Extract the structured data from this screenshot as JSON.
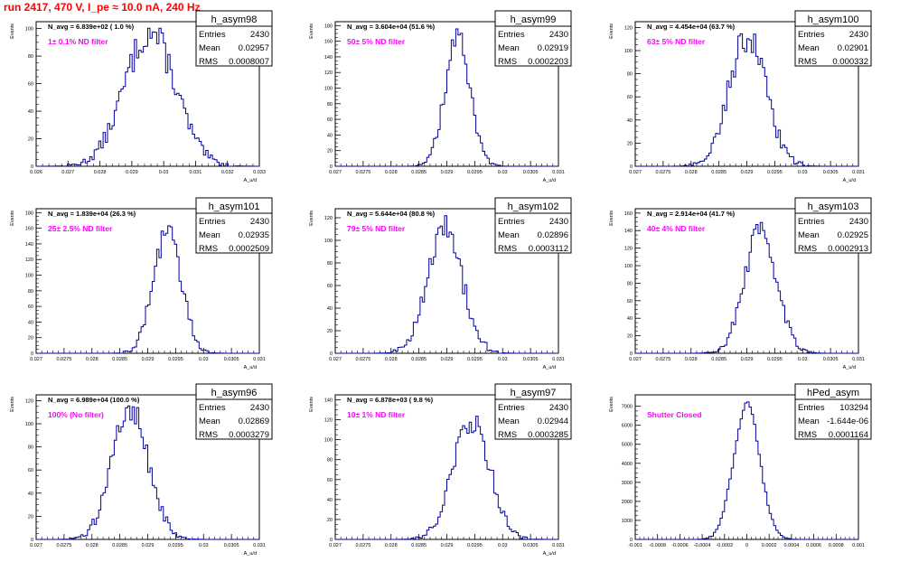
{
  "page": {
    "title": "run 2417,   470 V, I_pe ≈ 10.0 nA, 240 Hz"
  },
  "colors": {
    "histogram": "#000099",
    "frame": "#000000",
    "annotation": "#ff00ff",
    "title": "#ff0000"
  },
  "chart_data": [
    {
      "type": "histogram",
      "name": "h_asym98",
      "annotation": "N_avg = 6.839e+02 ( 1.0 %)",
      "filter_label": "1± 0.1% ND filter",
      "ylabel": "Events",
      "xlabel": "A_u/d",
      "stats": [
        {
          "label": "Entries",
          "value": "2430"
        },
        {
          "label": "Mean",
          "value": "0.02957"
        },
        {
          "label": "RMS",
          "value": "0.0008007"
        }
      ],
      "xlim": [
        0.026,
        0.033
      ],
      "xticks": [
        "0.026",
        "0.027",
        "0.028",
        "0.029",
        "0.03",
        "0.031",
        "0.032",
        "0.033"
      ],
      "ylim": [
        0,
        105
      ],
      "yticks": [
        0,
        20,
        40,
        60,
        80,
        100
      ],
      "mean": 0.02957,
      "sigma": 0.0008007,
      "peak": 97
    },
    {
      "type": "histogram",
      "name": "h_asym99",
      "annotation": "N_avg = 3.604e+04 (51.6 %)",
      "filter_label": "50± 5% ND filter",
      "ylabel": "Events",
      "xlabel": "A_u/d",
      "stats": [
        {
          "label": "Entries",
          "value": "2430"
        },
        {
          "label": "Mean",
          "value": "0.02919"
        },
        {
          "label": "RMS",
          "value": "0.0002203"
        }
      ],
      "xlim": [
        0.027,
        0.031
      ],
      "xticks": [
        "0.027",
        "0.0275",
        "0.028",
        "0.0285",
        "0.029",
        "0.0295",
        "0.03",
        "0.0305",
        "0.031"
      ],
      "ylim": [
        0,
        185
      ],
      "yticks": [
        0,
        20,
        40,
        60,
        80,
        100,
        120,
        140,
        160,
        180
      ],
      "mean": 0.02919,
      "sigma": 0.0002203,
      "peak": 165
    },
    {
      "type": "histogram",
      "name": "h_asym100",
      "annotation": "N_avg = 4.454e+04 (63.7 %)",
      "filter_label": "63± 5% ND filter",
      "ylabel": "Events",
      "xlabel": "A_u/d",
      "stats": [
        {
          "label": "Entries",
          "value": "2430"
        },
        {
          "label": "Mean",
          "value": "0.02901"
        },
        {
          "label": "RMS",
          "value": "0.000332"
        }
      ],
      "xlim": [
        0.027,
        0.031
      ],
      "xticks": [
        "0.027",
        "0.0275",
        "0.028",
        "0.0285",
        "0.029",
        "0.0295",
        "0.03",
        "0.0305",
        "0.031"
      ],
      "ylim": [
        0,
        125
      ],
      "yticks": [
        0,
        20,
        40,
        60,
        80,
        100,
        120
      ],
      "mean": 0.02901,
      "sigma": 0.000332,
      "peak": 112
    },
    {
      "type": "histogram",
      "name": "h_asym101",
      "annotation": "N_avg = 1.839e+04 (26.3 %)",
      "filter_label": "25± 2.5% ND filter",
      "ylabel": "Events",
      "xlabel": "A_u/d",
      "stats": [
        {
          "label": "Entries",
          "value": "2430"
        },
        {
          "label": "Mean",
          "value": "0.02935"
        },
        {
          "label": "RMS",
          "value": "0.0002509"
        }
      ],
      "xlim": [
        0.027,
        0.031
      ],
      "xticks": [
        "0.027",
        "0.0275",
        "0.028",
        "0.0285",
        "0.029",
        "0.0295",
        "0.03",
        "0.0305",
        "0.031"
      ],
      "ylim": [
        0,
        185
      ],
      "yticks": [
        0,
        20,
        40,
        60,
        80,
        100,
        120,
        140,
        160,
        180
      ],
      "mean": 0.02935,
      "sigma": 0.0002509,
      "peak": 155
    },
    {
      "type": "histogram",
      "name": "h_asym102",
      "annotation": "N_avg = 5.644e+04 (80.8 %)",
      "filter_label": "79± 5% ND filter",
      "ylabel": "Events",
      "xlabel": "A_u/d",
      "stats": [
        {
          "label": "Entries",
          "value": "2430"
        },
        {
          "label": "Mean",
          "value": "0.02896"
        },
        {
          "label": "RMS",
          "value": "0.0003112"
        }
      ],
      "xlim": [
        0.027,
        0.031
      ],
      "xticks": [
        "0.027",
        "0.0275",
        "0.028",
        "0.0285",
        "0.029",
        "0.0295",
        "0.03",
        "0.0305",
        "0.031"
      ],
      "ylim": [
        0,
        128
      ],
      "yticks": [
        0,
        20,
        40,
        60,
        80,
        100,
        120
      ],
      "mean": 0.02896,
      "sigma": 0.0003112,
      "peak": 112
    },
    {
      "type": "histogram",
      "name": "h_asym103",
      "annotation": "N_avg = 2.914e+04 (41.7 %)",
      "filter_label": "40± 4% ND filter",
      "ylabel": "Events",
      "xlabel": "A_u/d",
      "stats": [
        {
          "label": "Entries",
          "value": "2430"
        },
        {
          "label": "Mean",
          "value": "0.02925"
        },
        {
          "label": "RMS",
          "value": "0.0002913"
        }
      ],
      "xlim": [
        0.027,
        0.031
      ],
      "xticks": [
        "0.027",
        "0.0275",
        "0.028",
        "0.0285",
        "0.029",
        "0.0295",
        "0.03",
        "0.0305",
        "0.031"
      ],
      "ylim": [
        0,
        165
      ],
      "yticks": [
        0,
        20,
        40,
        60,
        80,
        100,
        120,
        140,
        160
      ],
      "mean": 0.02925,
      "sigma": 0.0002913,
      "peak": 140
    },
    {
      "type": "histogram",
      "name": "h_asym96",
      "annotation": "N_avg = 6.989e+04 (100.0 %)",
      "filter_label": "100% (No filter)",
      "ylabel": "Events",
      "xlabel": "A_u/d",
      "stats": [
        {
          "label": "Entries",
          "value": "2430"
        },
        {
          "label": "Mean",
          "value": "0.02869"
        },
        {
          "label": "RMS",
          "value": "0.0003279"
        }
      ],
      "xlim": [
        0.027,
        0.031
      ],
      "xticks": [
        "0.027",
        "0.0275",
        "0.028",
        "0.0285",
        "0.029",
        "0.0295",
        "0.03",
        "0.0305",
        "0.031"
      ],
      "ylim": [
        0,
        125
      ],
      "yticks": [
        0,
        20,
        40,
        60,
        80,
        100,
        120
      ],
      "mean": 0.02869,
      "sigma": 0.0003279,
      "peak": 112
    },
    {
      "type": "histogram",
      "name": "h_asym97",
      "annotation": "N_avg = 6.878e+03 ( 9.8 %)",
      "filter_label": "10± 1% ND filter",
      "ylabel": "Events",
      "xlabel": "A_u/d",
      "stats": [
        {
          "label": "Entries",
          "value": "2430"
        },
        {
          "label": "Mean",
          "value": "0.02944"
        },
        {
          "label": "RMS",
          "value": "0.0003285"
        }
      ],
      "xlim": [
        0.027,
        0.031
      ],
      "xticks": [
        "0.027",
        "0.0275",
        "0.028",
        "0.0285",
        "0.029",
        "0.0295",
        "0.03",
        "0.0305",
        "0.031"
      ],
      "ylim": [
        0,
        145
      ],
      "yticks": [
        0,
        20,
        40,
        60,
        80,
        100,
        120,
        140
      ],
      "mean": 0.02944,
      "sigma": 0.0003285,
      "peak": 120
    },
    {
      "type": "histogram",
      "name": "hPed_asym",
      "annotation": "",
      "filter_label": "Shutter Closed",
      "ylabel": "Events",
      "xlabel": "",
      "stats": [
        {
          "label": "Entries",
          "value": "103294"
        },
        {
          "label": "Mean",
          "value": "-1.644e-06"
        },
        {
          "label": "RMS",
          "value": "0.0001164"
        }
      ],
      "xlim": [
        -0.001,
        0.001
      ],
      "xticks": [
        "-0.001",
        "-0.0008",
        "-0.0006",
        "-0.0004",
        "-0.0002",
        "0",
        "0.0002",
        "0.0004",
        "0.0006",
        "0.0008",
        "0.001"
      ],
      "ylim": [
        0,
        7600
      ],
      "yticks": [
        0,
        1000,
        2000,
        3000,
        4000,
        5000,
        6000,
        7000
      ],
      "mean": -1.644e-06,
      "sigma": 0.0001164,
      "peak": 7100
    }
  ]
}
